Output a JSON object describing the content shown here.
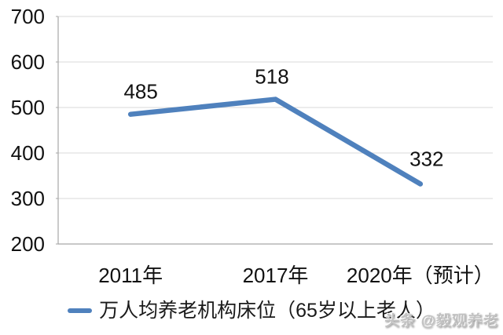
{
  "chart_data": {
    "type": "line",
    "categories": [
      "2011年",
      "2017年",
      "2020年（预计）"
    ],
    "series": [
      {
        "name": "万人均养老机构床位（65岁以上老人）",
        "values": [
          485,
          518,
          332
        ]
      }
    ],
    "data_labels": [
      "485",
      "518",
      "332"
    ],
    "title": "",
    "xlabel": "",
    "ylabel": "",
    "ylim": [
      200,
      700
    ],
    "yticks": [
      200,
      300,
      400,
      500,
      600,
      700
    ],
    "grid": true,
    "legend_position": "bottom",
    "line_color": "#4F81BD"
  },
  "colors": {
    "line": "#4F81BD",
    "gridline": "#d9d9d9",
    "axis": "#a6a6a6",
    "text": "#111111",
    "watermark": "#c2c2c2"
  },
  "watermark": {
    "text": "头条 @毅观养老"
  }
}
